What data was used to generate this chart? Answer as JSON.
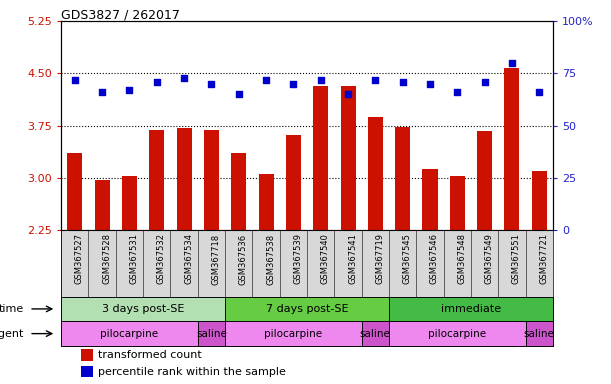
{
  "title": "GDS3827 / 262017",
  "samples": [
    "GSM367527",
    "GSM367528",
    "GSM367531",
    "GSM367532",
    "GSM367534",
    "GSM367718",
    "GSM367536",
    "GSM367538",
    "GSM367539",
    "GSM367540",
    "GSM367541",
    "GSM367719",
    "GSM367545",
    "GSM367546",
    "GSM367548",
    "GSM367549",
    "GSM367551",
    "GSM367721"
  ],
  "bar_values": [
    3.35,
    2.97,
    3.02,
    3.68,
    3.72,
    3.68,
    3.35,
    3.05,
    3.62,
    4.32,
    4.32,
    3.88,
    3.73,
    3.12,
    3.02,
    3.67,
    4.58,
    3.1
  ],
  "dot_values": [
    72,
    66,
    67,
    71,
    73,
    70,
    65,
    72,
    70,
    72,
    65,
    72,
    71,
    70,
    66,
    71,
    80,
    66
  ],
  "bar_color": "#cc1100",
  "dot_color": "#0000cc",
  "ylim_left": [
    2.25,
    5.25
  ],
  "ylim_right": [
    0,
    100
  ],
  "yticks_left": [
    2.25,
    3.0,
    3.75,
    4.5,
    5.25
  ],
  "yticks_right": [
    0,
    25,
    50,
    75,
    100
  ],
  "hlines": [
    3.0,
    3.75,
    4.5
  ],
  "time_groups": [
    {
      "label": "3 days post-SE",
      "start": 0,
      "end": 5,
      "color": "#b3e0b3"
    },
    {
      "label": "7 days post-SE",
      "start": 6,
      "end": 11,
      "color": "#66cc44"
    },
    {
      "label": "immediate",
      "start": 12,
      "end": 17,
      "color": "#44bb44"
    }
  ],
  "agent_groups": [
    {
      "label": "pilocarpine",
      "start": 0,
      "end": 4,
      "color": "#ee88ee"
    },
    {
      "label": "saline",
      "start": 5,
      "end": 5,
      "color": "#cc55cc"
    },
    {
      "label": "pilocarpine",
      "start": 6,
      "end": 10,
      "color": "#ee88ee"
    },
    {
      "label": "saline",
      "start": 11,
      "end": 11,
      "color": "#cc55cc"
    },
    {
      "label": "pilocarpine",
      "start": 12,
      "end": 16,
      "color": "#ee88ee"
    },
    {
      "label": "saline",
      "start": 17,
      "end": 17,
      "color": "#cc55cc"
    }
  ],
  "bar_bottom": 2.25,
  "bg_color": "#ffffff",
  "tick_area_color": "#d8d8d8",
  "left_axis_color": "#cc1100",
  "right_axis_color": "#2222cc"
}
